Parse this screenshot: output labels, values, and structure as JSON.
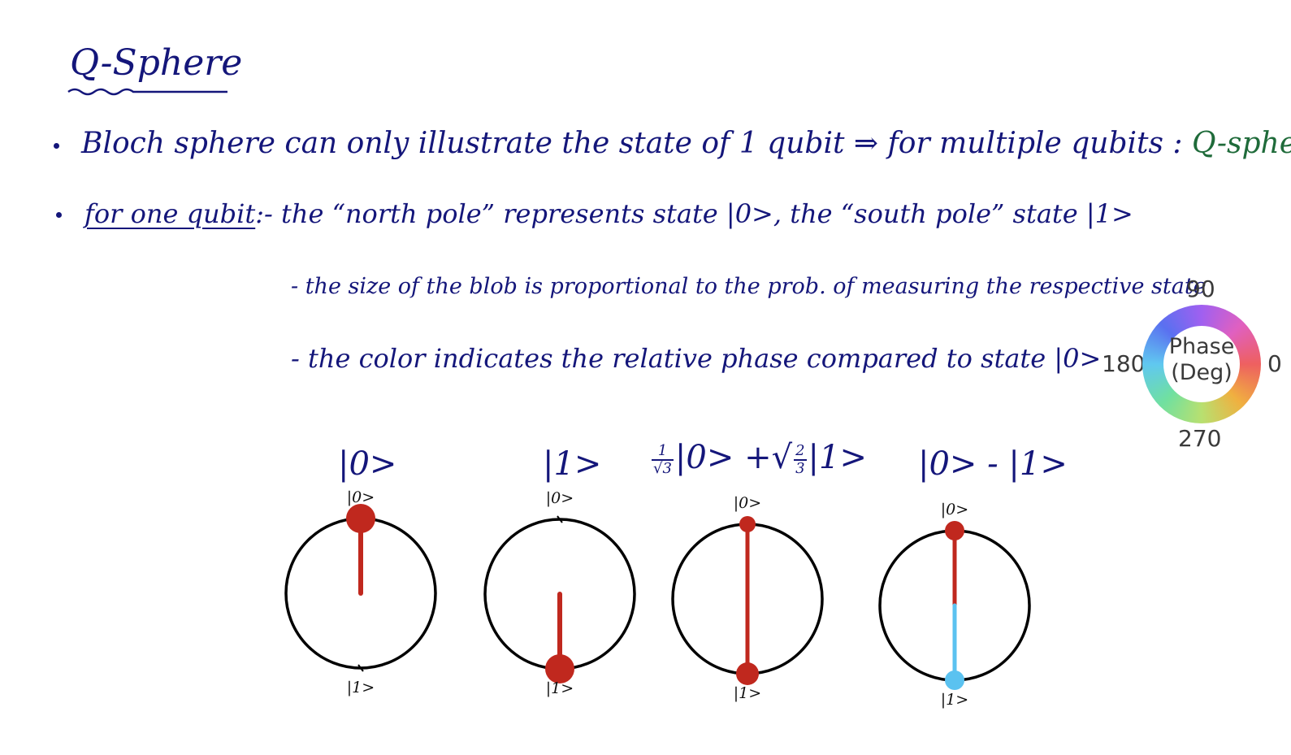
{
  "title": "Q-Sphere",
  "bullets": {
    "line1": "Bloch sphere can only illustrate the state of 1 qubit ⇒ for multiple qubits :",
    "line1_highlight": "Q-sphere",
    "line2_lead": "for one qubit",
    "line2_rest": ":- the “north pole” represents state |0>, the “south pole” state |1>",
    "line3": "- the size of the blob is proportional to the prob. of measuring the respective state",
    "line4": "- the color indicates the relative phase compared to state |0>"
  },
  "phase_wheel": {
    "center_line1": "Phase",
    "center_line2": "(Deg)",
    "label_90": "90",
    "label_180": "180",
    "label_0": "0",
    "label_270": "270"
  },
  "states": [
    {
      "label": "|0>",
      "north": "|0>",
      "south": "|1>",
      "p0": 1.0,
      "p1": 0.0,
      "color0": "#c0281e",
      "color1": "#c0281e"
    },
    {
      "label": "|1>",
      "north": "|0>",
      "south": "|1>",
      "p0": 0.0,
      "p1": 1.0,
      "color0": "#c0281e",
      "color1": "#c0281e"
    },
    {
      "label_mid": "|0> +",
      "label_end": "|1>",
      "frac1_num": "1",
      "frac1_den": "√3",
      "frac2_num": "2",
      "frac2_den": "3",
      "north": "|0>",
      "south": "|1>",
      "p0": 0.3333,
      "p1": 0.6667,
      "color0": "#c0281e",
      "color1": "#c0281e"
    },
    {
      "label": "|0> - |1>",
      "north": "|0>",
      "south": "|1>",
      "p0": 0.5,
      "p1": 0.5,
      "color0": "#c0281e",
      "color1": "#5bc2f0"
    }
  ]
}
